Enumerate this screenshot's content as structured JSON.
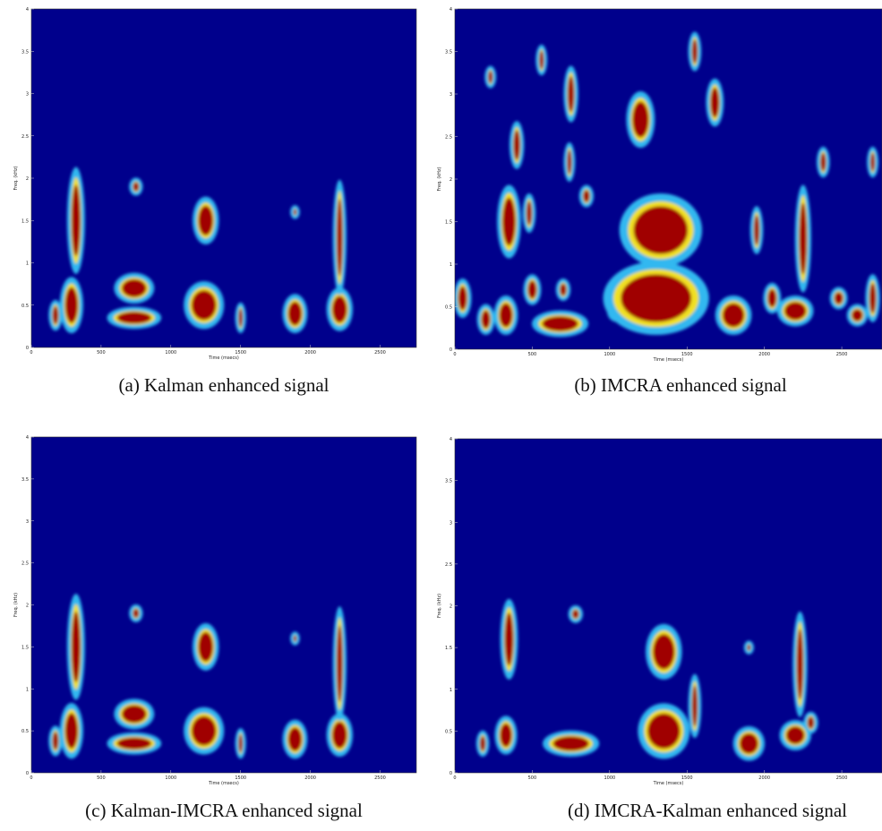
{
  "chart_data": [
    {
      "type": "spectrogram",
      "title": "(a) Kalman enhanced signal",
      "xlabel": "Time (msecs)",
      "ylabel": "Freq. (kHz)",
      "xlim": [
        0,
        2760
      ],
      "ylim": [
        0,
        4
      ],
      "xticks": [
        0,
        500,
        1000,
        1500,
        2000,
        2500
      ],
      "yticks": [
        0,
        0.5,
        1,
        1.5,
        2,
        2.5,
        3,
        3.5,
        4
      ],
      "x": [
        173,
        288,
        320,
        737,
        737,
        750,
        1237,
        1250,
        1500,
        1890,
        1890,
        2210,
        2210
      ],
      "y": [
        0.38,
        0.5,
        1.5,
        0.35,
        0.7,
        1.9,
        0.5,
        1.5,
        0.35,
        0.4,
        1.6,
        0.45,
        1.3
      ],
      "width": [
        60,
        130,
        90,
        350,
        250,
        60,
        250,
        150,
        40,
        140,
        30,
        150,
        60
      ],
      "height": [
        0.3,
        0.6,
        1.2,
        0.2,
        0.3,
        0.15,
        0.5,
        0.5,
        0.3,
        0.4,
        0.1,
        0.45,
        1.3
      ]
    },
    {
      "type": "spectrogram",
      "title": "(b) IMCRA enhanced signal",
      "xlabel": "Time (msecs)",
      "ylabel": "Freq. (kHz)",
      "xlim": [
        0,
        2760
      ],
      "ylim": [
        0,
        4
      ],
      "xticks": [
        0,
        500,
        1000,
        1500,
        2000,
        2500
      ],
      "yticks": [
        0,
        0.5,
        1,
        1.5,
        2,
        2.5,
        3,
        3.5,
        4
      ],
      "x": [
        50,
        200,
        230,
        330,
        350,
        400,
        480,
        500,
        560,
        680,
        700,
        740,
        750,
        850,
        1050,
        1300,
        1330,
        1200,
        1550,
        1680,
        1800,
        1950,
        2050,
        2200,
        2250,
        2380,
        2480,
        2600,
        2700,
        2700
      ],
      "y": [
        0.6,
        0.35,
        3.2,
        0.4,
        1.5,
        2.4,
        1.6,
        0.7,
        3.4,
        0.3,
        0.7,
        2.2,
        3.0,
        1.8,
        0.45,
        0.6,
        1.4,
        2.7,
        3.5,
        2.9,
        0.4,
        1.4,
        0.6,
        0.45,
        1.3,
        2.2,
        0.6,
        0.4,
        0.6,
        2.2
      ],
      "width": [
        80,
        80,
        40,
        120,
        120,
        60,
        50,
        80,
        40,
        330,
        60,
        40,
        60,
        60,
        100,
        650,
        500,
        150,
        50,
        80,
        200,
        50,
        80,
        200,
        70,
        50,
        80,
        100,
        60,
        40
      ],
      "height": [
        0.4,
        0.3,
        0.2,
        0.4,
        0.8,
        0.5,
        0.4,
        0.3,
        0.3,
        0.25,
        0.2,
        0.4,
        0.6,
        0.2,
        0.2,
        0.8,
        0.8,
        0.6,
        0.4,
        0.5,
        0.4,
        0.5,
        0.3,
        0.3,
        1.2,
        0.3,
        0.2,
        0.2,
        0.5,
        0.3
      ]
    },
    {
      "type": "spectrogram",
      "title": "(c) Kalman-IMCRA enhanced signal",
      "xlabel": "Time (msecs)",
      "ylabel": "Freq. (kHz)",
      "xlim": [
        0,
        2760
      ],
      "ylim": [
        0,
        4
      ],
      "xticks": [
        0,
        500,
        1000,
        1500,
        2000,
        2500
      ],
      "yticks": [
        0,
        0.5,
        1,
        1.5,
        2,
        2.5,
        3,
        3.5,
        4
      ],
      "x": [
        173,
        288,
        320,
        737,
        737,
        750,
        1237,
        1250,
        1500,
        1890,
        1890,
        2210,
        2210
      ],
      "y": [
        0.38,
        0.5,
        1.5,
        0.35,
        0.7,
        1.9,
        0.5,
        1.5,
        0.35,
        0.4,
        1.6,
        0.45,
        1.3
      ],
      "width": [
        60,
        130,
        90,
        350,
        250,
        60,
        250,
        150,
        40,
        140,
        30,
        150,
        60
      ],
      "height": [
        0.3,
        0.6,
        1.2,
        0.2,
        0.3,
        0.15,
        0.5,
        0.5,
        0.3,
        0.4,
        0.1,
        0.45,
        1.3
      ]
    },
    {
      "type": "spectrogram",
      "title": "(d) IMCRA-Kalman enhanced signal",
      "xlabel": "Time (msecs)",
      "ylabel": "Freq. (kHz)",
      "xlim": [
        0,
        2760
      ],
      "ylim": [
        0,
        4
      ],
      "xticks": [
        0,
        500,
        1000,
        1500,
        2000,
        2500
      ],
      "yticks": [
        0,
        0.5,
        1,
        1.5,
        2,
        2.5,
        3,
        3.5,
        4
      ],
      "x": [
        180,
        330,
        350,
        750,
        780,
        1350,
        1350,
        1550,
        1900,
        1900,
        2200,
        2230,
        2300
      ],
      "y": [
        0.35,
        0.45,
        1.6,
        0.35,
        1.9,
        0.5,
        1.45,
        0.8,
        0.35,
        1.5,
        0.45,
        1.3,
        0.6
      ],
      "width": [
        50,
        110,
        80,
        330,
        60,
        300,
        200,
        50,
        170,
        30,
        170,
        60,
        60
      ],
      "height": [
        0.25,
        0.4,
        0.9,
        0.25,
        0.15,
        0.6,
        0.6,
        0.7,
        0.35,
        0.1,
        0.3,
        1.2,
        0.2
      ]
    }
  ]
}
